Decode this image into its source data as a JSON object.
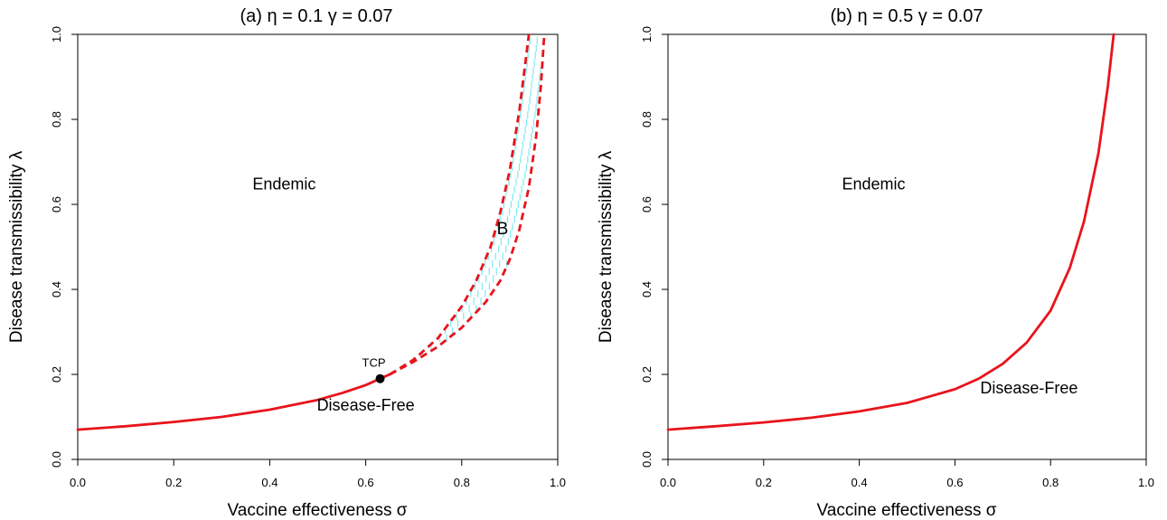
{
  "chart_data": [
    {
      "type": "line",
      "title": "(a)  η = 0.1  γ = 0.07",
      "xlabel": "Vaccine effectiveness σ",
      "ylabel": "Disease transmissibility λ",
      "xlim": [
        0,
        1
      ],
      "ylim": [
        0,
        1
      ],
      "xticks": [
        "0.0",
        "0.2",
        "0.4",
        "0.6",
        "0.8",
        "1.0"
      ],
      "yticks": [
        "0.0",
        "0.2",
        "0.4",
        "0.6",
        "0.8",
        "1.0"
      ],
      "grid": false,
      "curve_color": "#e8141c",
      "hatch_color": "#7fe8f0",
      "series": [
        {
          "style": "solid",
          "x": [
            0.0,
            0.1,
            0.2,
            0.3,
            0.4,
            0.5,
            0.55,
            0.6,
            0.63,
            0.65
          ],
          "y": [
            0.07,
            0.078,
            0.088,
            0.1,
            0.117,
            0.14,
            0.156,
            0.175,
            0.19,
            0.2
          ]
        },
        {
          "style": "dashed",
          "x": [
            0.65,
            0.7,
            0.75,
            0.8,
            0.83,
            0.86,
            0.88,
            0.9,
            0.92,
            0.94
          ],
          "y": [
            0.2,
            0.235,
            0.285,
            0.36,
            0.42,
            0.5,
            0.58,
            0.68,
            0.82,
            1.0
          ]
        },
        {
          "style": "dashed",
          "x": [
            0.65,
            0.7,
            0.75,
            0.8,
            0.85,
            0.88,
            0.9,
            0.92,
            0.94,
            0.955,
            0.965,
            0.972
          ],
          "y": [
            0.2,
            0.23,
            0.265,
            0.31,
            0.37,
            0.42,
            0.47,
            0.54,
            0.64,
            0.76,
            0.88,
            1.0
          ]
        }
      ],
      "marker": {
        "x": 0.63,
        "y": 0.19,
        "label": "TCP"
      },
      "region_labels": [
        {
          "text": "Endemic",
          "x": 0.43,
          "y": 0.65
        },
        {
          "text": "Disease-Free",
          "x": 0.6,
          "y": 0.13
        },
        {
          "text": "B",
          "x": 0.885,
          "y": 0.545
        }
      ]
    },
    {
      "type": "line",
      "title": "(b)  η = 0.5  γ = 0.07",
      "xlabel": "Vaccine effectiveness σ",
      "ylabel": "Disease transmissibility λ",
      "xlim": [
        0,
        1
      ],
      "ylim": [
        0,
        1
      ],
      "xticks": [
        "0.0",
        "0.2",
        "0.4",
        "0.6",
        "0.8",
        "1.0"
      ],
      "yticks": [
        "0.0",
        "0.2",
        "0.4",
        "0.6",
        "0.8",
        "1.0"
      ],
      "grid": false,
      "curve_color": "#e8141c",
      "series": [
        {
          "style": "solid",
          "x": [
            0.0,
            0.1,
            0.2,
            0.3,
            0.4,
            0.5,
            0.6,
            0.65,
            0.7,
            0.75,
            0.8,
            0.84,
            0.87,
            0.9,
            0.92,
            0.932
          ],
          "y": [
            0.07,
            0.078,
            0.087,
            0.098,
            0.113,
            0.133,
            0.165,
            0.19,
            0.225,
            0.275,
            0.35,
            0.45,
            0.56,
            0.72,
            0.88,
            1.0
          ]
        }
      ],
      "region_labels": [
        {
          "text": "Endemic",
          "x": 0.43,
          "y": 0.65
        },
        {
          "text": "Disease-Free",
          "x": 0.755,
          "y": 0.17
        }
      ]
    }
  ]
}
